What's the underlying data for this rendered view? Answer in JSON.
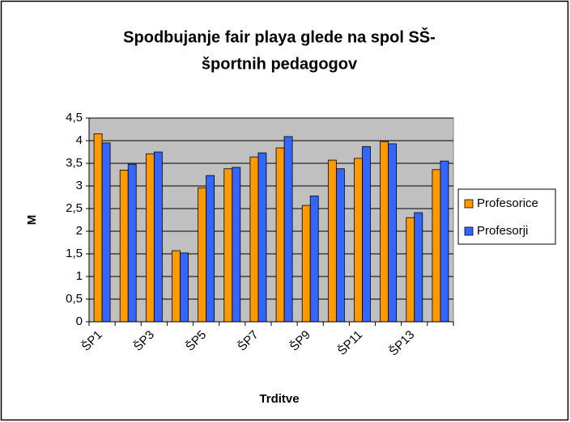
{
  "chart_data": {
    "type": "bar",
    "title": [
      "Spodbujanje fair playa glede na spol SŠ-",
      "športnih pedagogov"
    ],
    "x_label": "Trditve",
    "y_label": "M",
    "categories": [
      "ŠP1",
      null,
      "ŠP3",
      null,
      "ŠP5",
      null,
      "ŠP7",
      null,
      "ŠP9",
      null,
      "ŠP11",
      null,
      "ŠP13",
      null
    ],
    "series": [
      {
        "name": "Profesorice",
        "color": "#ff9900",
        "values": [
          4.15,
          3.35,
          3.71,
          1.57,
          2.96,
          3.38,
          3.64,
          3.84,
          2.57,
          3.57,
          3.61,
          3.98,
          2.3,
          3.36
        ]
      },
      {
        "name": "Profesorji",
        "color": "#3366ff",
        "values": [
          3.95,
          3.48,
          3.75,
          1.52,
          3.23,
          3.41,
          3.73,
          4.09,
          2.78,
          3.38,
          3.87,
          3.93,
          2.41,
          3.55
        ]
      }
    ],
    "ylim": [
      0,
      4.5
    ],
    "yticks": [
      0,
      {
        "value": 0.5,
        "label": "0,5"
      },
      1,
      {
        "value": 1.5,
        "label": "1,5"
      },
      2,
      {
        "value": 2.5,
        "label": "2,5"
      },
      3,
      {
        "value": 3.5,
        "label": "3,5"
      },
      4,
      {
        "value": 4.5,
        "label": "4,5"
      }
    ],
    "grid": true,
    "legend": "right"
  }
}
